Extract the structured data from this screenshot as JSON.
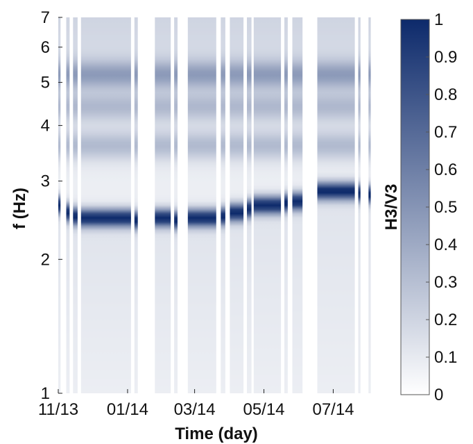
{
  "chart_data": {
    "type": "heatmap",
    "title": "",
    "xlabel": "Time (day)",
    "ylabel": "f (Hz)",
    "x_scale": "time",
    "y_scale": "log",
    "ylim": [
      1,
      7
    ],
    "y_ticks": [
      1,
      2,
      3,
      4,
      5,
      6,
      7
    ],
    "x_ticks": [
      "11/13",
      "01/14",
      "03/14",
      "05/14",
      "07/14"
    ],
    "x_range": [
      "2013-11-01",
      "2014-08-10"
    ],
    "colorbar": {
      "label": "H3/V3",
      "range": [
        0,
        1
      ],
      "ticks": [
        0,
        0.1,
        0.2,
        0.3,
        0.4,
        0.5,
        0.6,
        0.7,
        0.8,
        0.9,
        1
      ],
      "colormap": [
        "#ffffff",
        "#0d2a6b"
      ]
    },
    "recording_periods": [
      {
        "start": "2013-11-01",
        "end": "2013-11-03",
        "peak_hz": 2.65
      },
      {
        "start": "2013-11-08",
        "end": "2013-11-11",
        "peak_hz": 2.55
      },
      {
        "start": "2013-11-14",
        "end": "2013-11-18",
        "peak_hz": 2.5
      },
      {
        "start": "2013-11-21",
        "end": "2014-01-04",
        "peak_hz": 2.48
      },
      {
        "start": "2014-01-07",
        "end": "2014-01-10",
        "peak_hz": 2.45
      },
      {
        "start": "2014-01-25",
        "end": "2014-02-08",
        "peak_hz": 2.48
      },
      {
        "start": "2014-02-11",
        "end": "2014-02-14",
        "peak_hz": 2.45
      },
      {
        "start": "2014-02-23",
        "end": "2014-03-20",
        "peak_hz": 2.48
      },
      {
        "start": "2014-03-24",
        "end": "2014-03-28",
        "peak_hz": 2.5
      },
      {
        "start": "2014-04-01",
        "end": "2014-04-13",
        "peak_hz": 2.55
      },
      {
        "start": "2014-04-16",
        "end": "2014-04-20",
        "peak_hz": 2.6
      },
      {
        "start": "2014-04-22",
        "end": "2014-05-16",
        "peak_hz": 2.65
      },
      {
        "start": "2014-05-19",
        "end": "2014-05-22",
        "peak_hz": 2.68
      },
      {
        "start": "2014-05-26",
        "end": "2014-06-04",
        "peak_hz": 2.7
      },
      {
        "start": "2014-06-17",
        "end": "2014-07-20",
        "peak_hz": 2.85
      },
      {
        "start": "2014-07-23",
        "end": "2014-07-25",
        "peak_hz": 2.82
      },
      {
        "start": "2014-08-01",
        "end": "2014-08-03",
        "peak_hz": 2.8
      }
    ],
    "secondary_bands_hz": [
      3.6,
      4.4,
      5.2
    ]
  }
}
